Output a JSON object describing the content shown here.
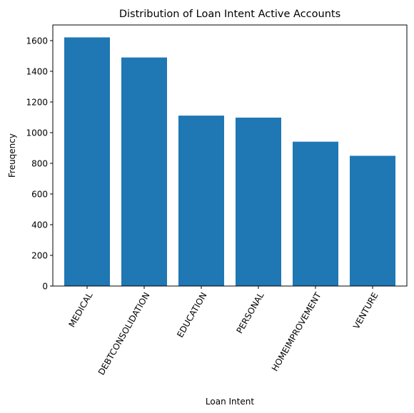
{
  "chart_data": {
    "type": "bar",
    "title": "Distribution of Loan Intent Active Accounts",
    "xlabel": "Loan Intent",
    "ylabel": "Freuqency",
    "categories": [
      "MEDICAL",
      "DEBTCONSOLIDATION",
      "EDUCATION",
      "PERSONAL",
      "HOMEIMPROVEMENT",
      "VENTURE"
    ],
    "values": [
      1621,
      1490,
      1111,
      1098,
      941,
      849
    ],
    "ylim": [
      0,
      1702
    ],
    "yticks": [
      0,
      200,
      400,
      600,
      800,
      1000,
      1200,
      1400,
      1600
    ],
    "bar_color": "#1f77b4",
    "grid": false,
    "xtick_rotation": 60
  }
}
